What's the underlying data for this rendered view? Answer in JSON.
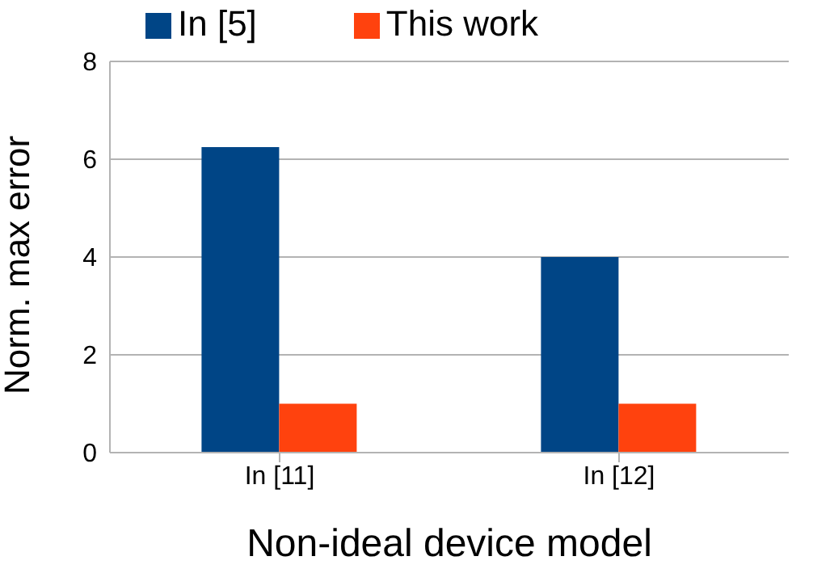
{
  "chart_data": {
    "type": "bar",
    "xlabel": "Non-ideal device model",
    "ylabel": "Norm. max error",
    "categories": [
      "In [11]",
      "In [12]"
    ],
    "series": [
      {
        "name": "In [5]",
        "color": "#004586",
        "values": [
          6.25,
          4.0
        ]
      },
      {
        "name": "This work",
        "color": "#ff420e",
        "values": [
          1.0,
          1.0
        ]
      }
    ],
    "ylim": [
      0,
      8
    ],
    "yticks": [
      0,
      2,
      4,
      6,
      8
    ],
    "grid": "y",
    "legend": "top left"
  }
}
